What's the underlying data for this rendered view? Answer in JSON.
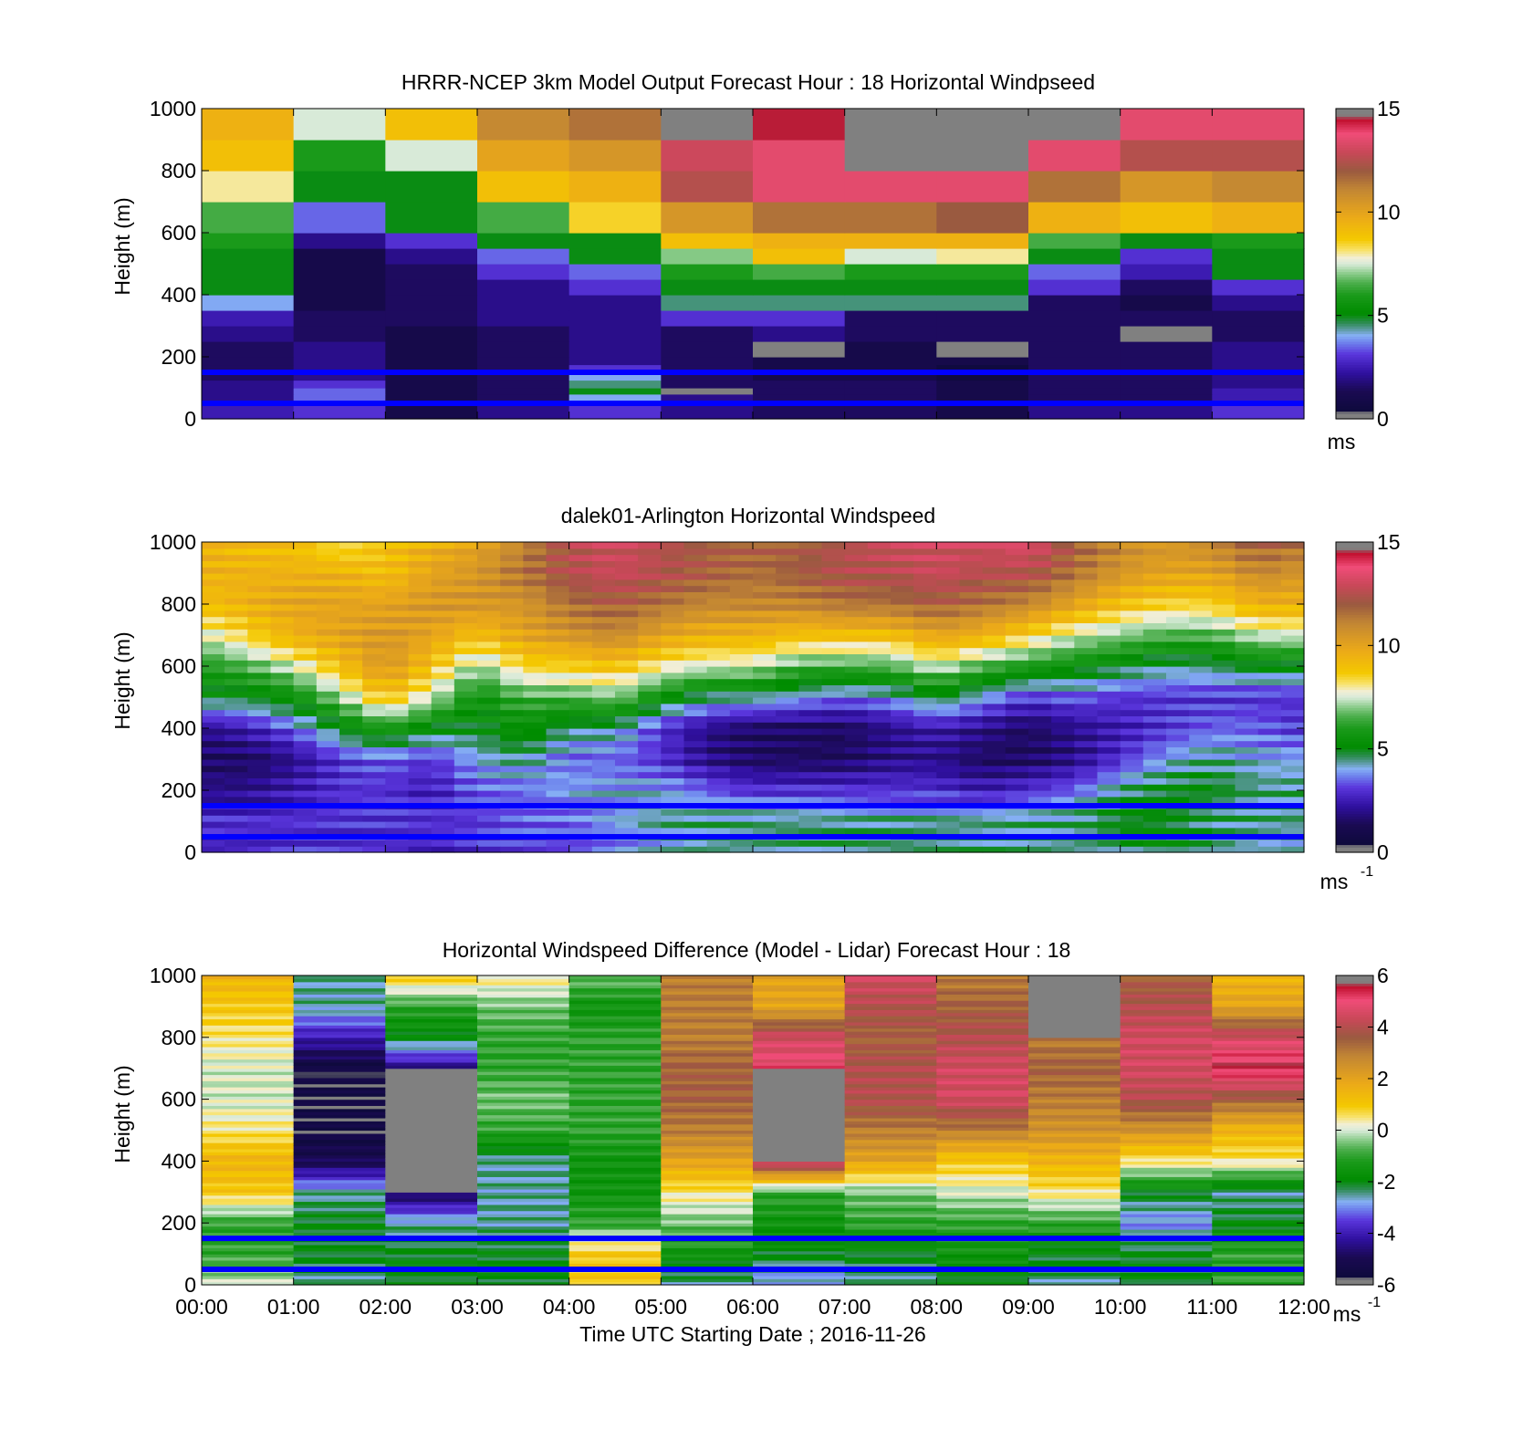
{
  "chart_data": [
    {
      "type": "heatmap",
      "title": "HRRR-NCEP 3km Model Output   Forecast Hour : 18 Horizontal Windpseed",
      "xlabel": "",
      "ylabel": "Height (m)",
      "ylim": [
        0,
        1000
      ],
      "yticks": [
        "0",
        "200",
        "400",
        "600",
        "800",
        "1000"
      ],
      "xlim": [
        0,
        12
      ],
      "colorbar": {
        "min": 0,
        "max": 15,
        "ticks": [
          "0",
          "5",
          "10",
          "15"
        ],
        "unit": "ms"
      },
      "layers_m": [
        20,
        40,
        60,
        80,
        100,
        125,
        150,
        175,
        200,
        250,
        300,
        350,
        400,
        450,
        500,
        550,
        600,
        700,
        800,
        900,
        1000
      ],
      "columns_hours": [
        0,
        1,
        2,
        3,
        4,
        5,
        6,
        7,
        8,
        9,
        10,
        11
      ],
      "values": [
        [
          2.5,
          3.0,
          1.0,
          2.0,
          3.0,
          2.0,
          1.5,
          1.5,
          1.0,
          2.0,
          2.0,
          3.0
        ],
        [
          2.5,
          3.0,
          1.0,
          2.0,
          3.0,
          2.0,
          1.5,
          1.5,
          1.0,
          2.0,
          2.0,
          3.0
        ],
        [
          2.0,
          3.5,
          1.0,
          1.5,
          4.0,
          2.0,
          1.5,
          1.5,
          1.0,
          1.5,
          1.5,
          2.5
        ],
        [
          2.0,
          3.5,
          1.0,
          1.5,
          5.0,
          0.0,
          1.5,
          1.5,
          1.0,
          1.5,
          1.5,
          2.5
        ],
        [
          2.0,
          3.0,
          1.0,
          1.5,
          4.5,
          1.5,
          1.5,
          1.5,
          1.0,
          1.5,
          1.5,
          2.0
        ],
        [
          1.5,
          2.0,
          1.0,
          1.5,
          4.0,
          1.5,
          1.0,
          1.0,
          0.5,
          1.5,
          1.5,
          2.0
        ],
        [
          1.5,
          2.0,
          1.0,
          1.5,
          3.0,
          1.5,
          1.0,
          1.0,
          0.5,
          1.5,
          1.5,
          2.0
        ],
        [
          1.5,
          2.0,
          1.0,
          1.5,
          2.0,
          1.5,
          1.0,
          1.0,
          1.0,
          1.5,
          1.5,
          2.0
        ],
        [
          1.5,
          2.0,
          1.0,
          1.5,
          2.0,
          1.5,
          0.0,
          1.0,
          0.0,
          1.5,
          1.5,
          2.0
        ],
        [
          2.0,
          1.5,
          1.0,
          1.5,
          2.0,
          1.5,
          2.0,
          1.5,
          1.5,
          1.5,
          0.0,
          1.5
        ],
        [
          2.5,
          1.5,
          1.5,
          2.0,
          2.0,
          3.0,
          3.0,
          1.5,
          1.5,
          1.5,
          1.5,
          1.5
        ],
        [
          4.0,
          1.0,
          1.5,
          2.0,
          2.0,
          4.5,
          4.5,
          4.5,
          4.5,
          1.5,
          1.0,
          2.0
        ],
        [
          5.0,
          1.0,
          1.5,
          2.0,
          3.0,
          5.0,
          5.0,
          5.0,
          5.0,
          3.0,
          1.5,
          3.0
        ],
        [
          5.0,
          1.0,
          1.5,
          3.0,
          3.5,
          6.0,
          6.5,
          6.0,
          6.0,
          3.5,
          2.5,
          5.0
        ],
        [
          5.0,
          1.0,
          2.0,
          3.5,
          5.0,
          7.0,
          9.0,
          7.5,
          8.0,
          5.0,
          3.0,
          5.0
        ],
        [
          6.0,
          2.0,
          3.0,
          5.0,
          5.0,
          9.0,
          9.5,
          9.5,
          9.5,
          6.5,
          5.0,
          6.0
        ],
        [
          6.5,
          3.5,
          5.0,
          6.5,
          8.5,
          10.5,
          11.5,
          11.5,
          12.0,
          9.5,
          9.0,
          9.5
        ],
        [
          8.0,
          5.0,
          5.0,
          9.0,
          9.5,
          12.5,
          13.5,
          13.5,
          13.5,
          11.5,
          10.5,
          11.0
        ],
        [
          9.0,
          6.0,
          7.5,
          10.0,
          10.5,
          13.0,
          13.5,
          15.0,
          15.0,
          13.5,
          12.5,
          12.5
        ],
        [
          9.5,
          7.5,
          9.0,
          11.0,
          11.5,
          15.0,
          14.5,
          15.0,
          15.0,
          15.0,
          13.5,
          13.5
        ]
      ]
    },
    {
      "type": "heatmap",
      "title": "dalek01-Arlington  Horizontal Windspeed",
      "xlabel": "",
      "ylabel": "Height (m)",
      "ylim": [
        0,
        1000
      ],
      "yticks": [
        "0",
        "200",
        "400",
        "600",
        "800",
        "1000"
      ],
      "xlim": [
        0,
        12
      ],
      "colorbar": {
        "min": 0,
        "max": 15,
        "ticks": [
          "0",
          "5",
          "10",
          "15"
        ],
        "unit": "ms",
        "unit_exp": "-1"
      },
      "time_step_hours": 0.25,
      "height_step_m": 20,
      "profile_anchors_hours": [
        0,
        0.5,
        1,
        1.5,
        2,
        2.5,
        3,
        3.5,
        4,
        4.5,
        5,
        5.5,
        6,
        6.5,
        7,
        7.5,
        8,
        8.5,
        9,
        9.5,
        10,
        10.5,
        11,
        11.5,
        12
      ],
      "profile_heights_m": [
        0,
        100,
        200,
        300,
        400,
        500,
        600,
        700,
        800,
        900,
        1000
      ],
      "profile_values": [
        [
          2.5,
          3.0,
          2.0,
          1.5,
          2.0,
          5.0,
          6.0,
          7.5,
          9.0,
          9.5,
          9.5
        ],
        [
          2.5,
          3.0,
          2.0,
          1.5,
          2.5,
          5.0,
          6.5,
          8.5,
          9.5,
          9.5,
          9.0
        ],
        [
          3.0,
          3.0,
          2.5,
          2.0,
          3.5,
          5.5,
          7.5,
          9.5,
          10.0,
          9.5,
          9.0
        ],
        [
          3.0,
          3.0,
          3.0,
          3.0,
          5.0,
          7.0,
          9.0,
          10.0,
          10.0,
          9.5,
          8.0
        ],
        [
          3.0,
          3.0,
          3.0,
          3.5,
          6.0,
          9.0,
          10.5,
          10.5,
          10.0,
          9.0,
          9.0
        ],
        [
          2.5,
          3.0,
          2.5,
          3.0,
          5.0,
          7.5,
          9.0,
          10.0,
          10.5,
          10.0,
          9.5
        ],
        [
          3.0,
          3.0,
          3.5,
          4.0,
          5.0,
          5.5,
          7.0,
          9.0,
          10.5,
          10.5,
          10.0
        ],
        [
          3.0,
          3.5,
          3.5,
          4.5,
          5.5,
          6.5,
          8.5,
          10.0,
          10.5,
          11.5,
          11.0
        ],
        [
          3.0,
          3.5,
          4.0,
          3.5,
          4.5,
          6.5,
          8.5,
          10.5,
          11.5,
          12.5,
          12.5
        ],
        [
          3.5,
          4.0,
          4.0,
          3.5,
          4.5,
          7.0,
          9.0,
          11.0,
          12.0,
          13.0,
          13.0
        ],
        [
          4.0,
          4.5,
          4.0,
          3.0,
          3.0,
          5.5,
          8.0,
          10.0,
          11.5,
          12.5,
          12.5
        ],
        [
          4.5,
          4.5,
          3.5,
          2.0,
          2.0,
          4.5,
          7.5,
          9.5,
          11.0,
          12.0,
          12.0
        ],
        [
          4.5,
          4.5,
          3.0,
          1.5,
          1.5,
          4.5,
          7.5,
          9.5,
          11.0,
          11.5,
          12.0
        ],
        [
          4.5,
          4.5,
          3.0,
          1.5,
          1.5,
          4.0,
          6.5,
          9.0,
          11.0,
          12.0,
          12.0
        ],
        [
          4.5,
          4.5,
          3.0,
          1.5,
          1.5,
          3.5,
          6.5,
          9.0,
          11.5,
          12.5,
          12.5
        ],
        [
          4.5,
          4.5,
          3.0,
          2.0,
          2.0,
          4.0,
          6.5,
          9.0,
          11.5,
          12.5,
          13.0
        ],
        [
          4.5,
          4.5,
          3.0,
          2.0,
          2.5,
          5.0,
          7.5,
          10.0,
          12.0,
          13.0,
          13.0
        ],
        [
          4.5,
          4.5,
          2.5,
          1.5,
          2.0,
          4.0,
          6.5,
          9.5,
          11.5,
          12.5,
          13.0
        ],
        [
          4.5,
          4.5,
          3.0,
          1.5,
          1.5,
          3.0,
          6.0,
          8.5,
          11.0,
          12.5,
          13.5
        ],
        [
          4.5,
          4.5,
          3.5,
          2.0,
          2.0,
          3.5,
          5.5,
          7.5,
          10.0,
          11.5,
          12.0
        ],
        [
          4.5,
          5.0,
          4.5,
          3.0,
          2.5,
          3.0,
          5.0,
          7.0,
          9.0,
          10.5,
          11.0
        ],
        [
          5.0,
          5.0,
          5.0,
          4.0,
          3.0,
          3.0,
          4.5,
          6.5,
          8.5,
          10.0,
          10.5
        ],
        [
          4.5,
          4.5,
          5.0,
          4.5,
          3.5,
          3.0,
          4.5,
          6.5,
          8.5,
          10.0,
          11.0
        ],
        [
          4.0,
          4.5,
          4.5,
          4.0,
          3.5,
          3.0,
          5.0,
          7.5,
          9.5,
          11.0,
          12.0
        ],
        [
          4.0,
          4.5,
          4.5,
          4.0,
          3.0,
          3.0,
          5.0,
          7.5,
          9.5,
          10.5,
          11.5
        ]
      ]
    },
    {
      "type": "heatmap",
      "title": "Horizontal Windspeed Difference (Model - Lidar) Forecast Hour : 18",
      "xlabel": "Time UTC  Starting Date ; 2016-11-26",
      "ylabel": "Height (m)",
      "ylim": [
        0,
        1000
      ],
      "yticks": [
        "0",
        "200",
        "400",
        "600",
        "800",
        "1000"
      ],
      "xlim": [
        0,
        12
      ],
      "xticks": [
        "00:00",
        "01:00",
        "02:00",
        "03:00",
        "04:00",
        "05:00",
        "06:00",
        "07:00",
        "08:00",
        "09:00",
        "10:00",
        "11:00",
        "12:00"
      ],
      "colorbar": {
        "min": -6,
        "max": 6,
        "ticks": [
          "-6",
          "-4",
          "-2",
          "0",
          "2",
          "4",
          "6"
        ],
        "unit": "ms",
        "unit_exp": "-1"
      },
      "profile_heights_m": [
        0,
        100,
        200,
        300,
        400,
        500,
        600,
        700,
        800,
        900,
        1000
      ],
      "profile_values": [
        [
          0.0,
          -1.0,
          -1.0,
          1.0,
          1.5,
          0.5,
          0.0,
          0.0,
          0.5,
          1.0,
          1.5
        ],
        [
          -2.5,
          -2.0,
          -2.0,
          -2.5,
          -5.0,
          -5.5,
          -5.5,
          -5.5,
          -4.0,
          -2.5,
          -2.5
        ],
        [
          -2.0,
          -2.0,
          -2.5,
          -5.0,
          null,
          null,
          null,
          -4.5,
          -2.0,
          -1.0,
          1.0
        ],
        [
          -2.0,
          -2.0,
          -2.5,
          -2.5,
          -2.5,
          -1.0,
          -0.5,
          -1.0,
          -1.0,
          -0.5,
          0.5
        ],
        [
          1.0,
          1.0,
          -1.0,
          -1.5,
          -1.5,
          -1.0,
          -1.0,
          -1.0,
          -1.0,
          -1.5,
          -0.5
        ],
        [
          -2.5,
          -1.5,
          -0.5,
          0.5,
          2.0,
          3.0,
          3.5,
          3.5,
          3.0,
          3.0,
          3.0
        ],
        [
          -3.0,
          -2.0,
          -1.5,
          -1.0,
          5.0,
          null,
          null,
          5.0,
          4.5,
          2.0,
          2.0
        ],
        [
          -2.5,
          -2.0,
          -1.0,
          -0.5,
          2.0,
          3.0,
          4.0,
          4.0,
          3.5,
          4.0,
          4.5
        ],
        [
          -2.0,
          -1.5,
          -1.0,
          0.0,
          1.0,
          3.0,
          4.5,
          4.5,
          4.0,
          3.5,
          3.0
        ],
        [
          -2.5,
          -2.0,
          -1.0,
          0.5,
          1.5,
          2.5,
          3.0,
          3.5,
          3.0,
          null,
          3.0
        ],
        [
          -2.0,
          -2.0,
          -3.0,
          -2.0,
          0.5,
          2.5,
          4.0,
          4.5,
          4.5,
          4.0,
          3.5
        ],
        [
          -1.0,
          -1.0,
          -2.0,
          -2.5,
          0.5,
          1.5,
          3.5,
          5.5,
          4.5,
          2.0,
          1.5
        ]
      ]
    }
  ]
}
